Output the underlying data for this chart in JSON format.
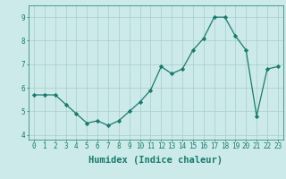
{
  "x": [
    0,
    1,
    2,
    3,
    4,
    5,
    6,
    7,
    8,
    9,
    10,
    11,
    12,
    13,
    14,
    15,
    16,
    17,
    18,
    19,
    20,
    21,
    22,
    23
  ],
  "y": [
    5.7,
    5.7,
    5.7,
    5.3,
    4.9,
    4.5,
    4.6,
    4.4,
    4.6,
    5.0,
    5.4,
    5.9,
    6.9,
    6.6,
    6.8,
    7.6,
    8.1,
    9.0,
    9.0,
    8.2,
    7.6,
    4.8,
    6.8,
    6.9
  ],
  "line_color": "#1a7a6e",
  "marker_color": "#1a7a6e",
  "bg_color": "#cceaea",
  "grid_color": "#aacccc",
  "axis_color": "#1a7a6e",
  "xlabel": "Humidex (Indice chaleur)",
  "xlim": [
    -0.5,
    23.5
  ],
  "ylim": [
    3.8,
    9.5
  ],
  "yticks": [
    4,
    5,
    6,
    7,
    8,
    9
  ],
  "xticks": [
    0,
    1,
    2,
    3,
    4,
    5,
    6,
    7,
    8,
    9,
    10,
    11,
    12,
    13,
    14,
    15,
    16,
    17,
    18,
    19,
    20,
    21,
    22,
    23
  ],
  "tick_fontsize": 5.5,
  "label_fontsize": 7.5
}
